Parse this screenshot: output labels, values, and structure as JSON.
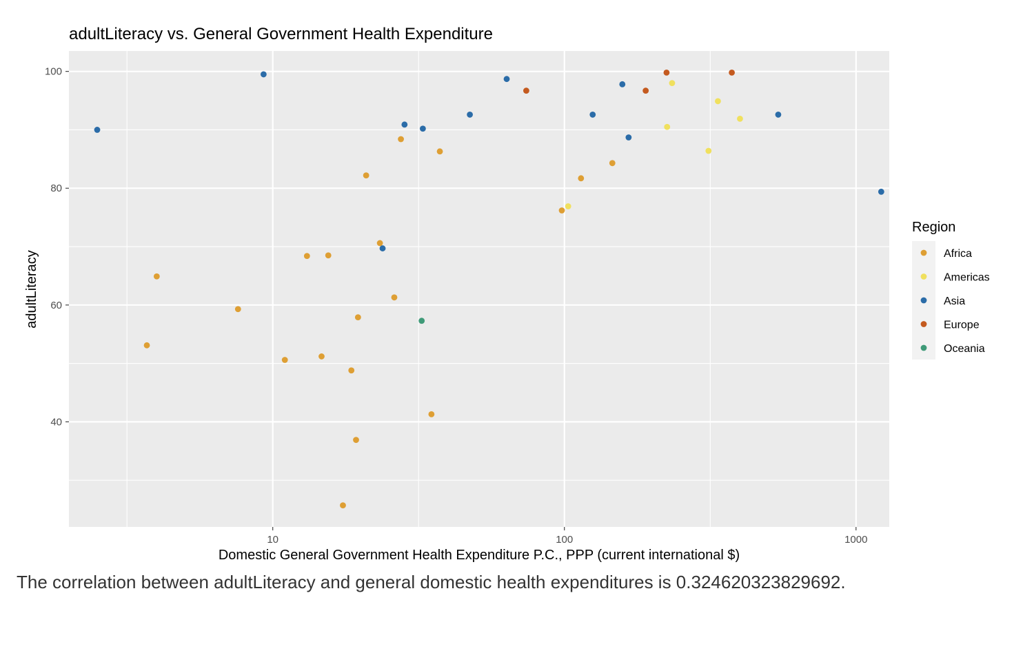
{
  "chart_data": {
    "type": "scatter",
    "title": "adultLiteracy vs. General Government Health Expenditure",
    "xlabel": "Domestic General Government Health Expenditure P.C., PPP (current international $)",
    "ylabel": "adultLiteracy",
    "x_scale": "log10",
    "xlim": [
      2,
      1300
    ],
    "ylim": [
      22,
      103.5
    ],
    "x_ticks": [
      10,
      100,
      1000
    ],
    "x_tick_labels": [
      "10",
      "100",
      "1000"
    ],
    "y_ticks": [
      40,
      60,
      80,
      100
    ],
    "y_tick_labels": [
      "40",
      "60",
      "80",
      "100"
    ],
    "grid": true,
    "legend": {
      "title": "Region",
      "placement": "right",
      "entries": [
        "Africa",
        "Americas",
        "Asia",
        "Europe",
        "Oceania"
      ]
    },
    "colors": {
      "Africa": "#DE9F34",
      "Americas": "#F0E05E",
      "Asia": "#2B6CA8",
      "Europe": "#C45A1F",
      "Oceania": "#3F9A78",
      "panel": "#EBEBEB",
      "grid": "#FFFFFF"
    },
    "series": [
      {
        "name": "Africa",
        "points": [
          [
            3.7,
            53.1
          ],
          [
            4.0,
            64.9
          ],
          [
            7.6,
            59.3
          ],
          [
            11.0,
            50.6
          ],
          [
            13.1,
            68.4
          ],
          [
            14.7,
            51.2
          ],
          [
            15.5,
            68.5
          ],
          [
            17.4,
            25.7
          ],
          [
            18.6,
            48.8
          ],
          [
            19.3,
            36.9
          ],
          [
            19.6,
            57.9
          ],
          [
            20.9,
            82.2
          ],
          [
            23.3,
            70.6
          ],
          [
            26.1,
            61.3
          ],
          [
            27.5,
            88.4
          ],
          [
            35.0,
            41.3
          ],
          [
            37.4,
            86.3
          ],
          [
            98.0,
            76.2
          ],
          [
            114.0,
            81.7
          ],
          [
            146.0,
            84.3
          ]
        ]
      },
      {
        "name": "Americas",
        "points": [
          [
            103.0,
            76.9
          ],
          [
            225.0,
            90.5
          ],
          [
            234.0,
            98.0
          ],
          [
            312.0,
            86.4
          ],
          [
            336.0,
            94.9
          ],
          [
            400.0,
            91.9
          ]
        ]
      },
      {
        "name": "Asia",
        "points": [
          [
            2.5,
            90.0
          ],
          [
            9.3,
            99.5
          ],
          [
            23.8,
            69.7
          ],
          [
            28.3,
            90.9
          ],
          [
            32.7,
            90.2
          ],
          [
            47.4,
            92.6
          ],
          [
            63.4,
            98.7
          ],
          [
            125.0,
            92.6
          ],
          [
            158.0,
            97.8
          ],
          [
            166.0,
            88.7
          ],
          [
            541.0,
            92.6
          ],
          [
            1220.0,
            79.4
          ]
        ]
      },
      {
        "name": "Europe",
        "points": [
          [
            74.0,
            96.7
          ],
          [
            190.0,
            96.7
          ],
          [
            224.0,
            99.8
          ],
          [
            375.0,
            99.8
          ]
        ]
      },
      {
        "name": "Oceania",
        "points": [
          [
            32.4,
            57.3
          ]
        ]
      }
    ]
  },
  "caption": "The correlation between adultLiteracy and general domestic health expenditures is 0.324620323829692."
}
